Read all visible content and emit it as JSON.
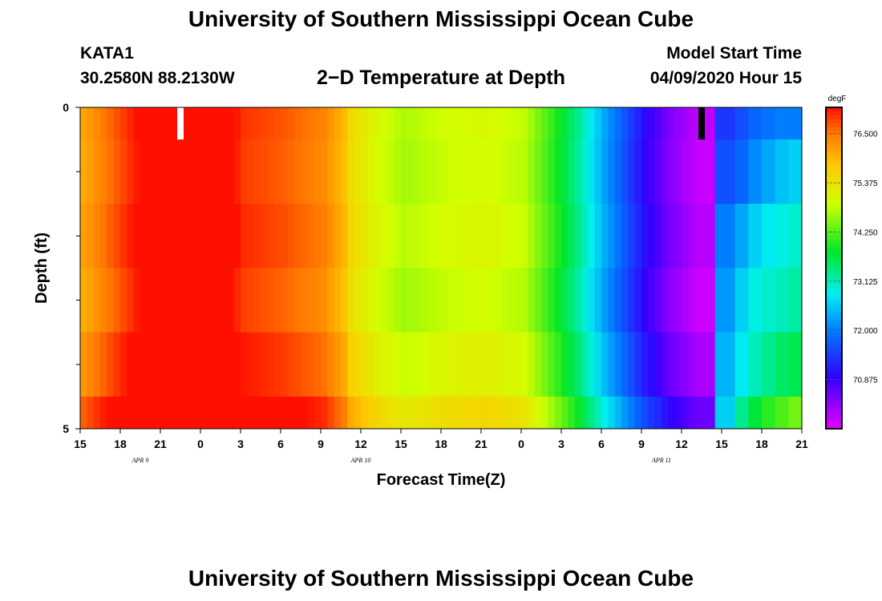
{
  "header": {
    "title_top": "University of Southern Mississippi Ocean Cube",
    "title_bottom": "University of Southern Mississippi Ocean Cube",
    "station": "KATA1",
    "coords": "30.2580N 88.2130W",
    "plot_title": "2−D Temperature at Depth",
    "start_label": "Model Start Time",
    "start_value": "04/09/2020 Hour 15"
  },
  "chart_data": {
    "type": "heatmap",
    "xlabel": "Forecast Time(Z)",
    "ylabel": "Depth (ft)",
    "colorbar_unit": "degF",
    "x_tick_labels": [
      "15",
      "18",
      "21",
      "0",
      "3",
      "6",
      "9",
      "12",
      "15",
      "18",
      "21",
      "0",
      "3",
      "6",
      "9",
      "12",
      "15",
      "18",
      "21"
    ],
    "date_labels": [
      {
        "text": "APR 9",
        "hour": 4.5
      },
      {
        "text": "APR 10",
        "hour": 21
      },
      {
        "text": "APR 11",
        "hour": 43.5
      }
    ],
    "y_tick_labels": [
      {
        "text": "0",
        "depth": 0
      },
      {
        "text": "5",
        "depth": 5
      }
    ],
    "y_minor_ticks": [
      1,
      2,
      3,
      4
    ],
    "xlim_hours": [
      0,
      54
    ],
    "ylim_ft": [
      0,
      5
    ],
    "depth_rows": [
      0,
      0.5,
      1.5,
      2.5,
      3.5,
      4.5
    ],
    "row_offsets": [
      0,
      -0.05,
      0.05,
      -0.08,
      0.15,
      0.55
    ],
    "tail_rows": [
      {
        "depth": 0,
        "values": [
          71.4,
          71.6,
          71.8,
          71.9,
          72.0,
          72.0
        ]
      },
      {
        "depth": 0.5,
        "values": [
          71.6,
          71.8,
          72.1,
          72.3,
          72.5,
          72.6
        ]
      },
      {
        "depth": 1.5,
        "values": [
          72.0,
          72.3,
          72.6,
          72.8,
          72.9,
          73.0
        ]
      },
      {
        "depth": 2.5,
        "values": [
          72.2,
          72.6,
          72.9,
          73.0,
          73.1,
          73.2
        ]
      },
      {
        "depth": 3.5,
        "values": [
          72.4,
          72.8,
          73.1,
          73.3,
          73.5,
          73.6
        ]
      },
      {
        "depth": 4.5,
        "values": [
          72.6,
          73.3,
          73.7,
          74.0,
          74.2,
          74.4
        ]
      }
    ],
    "time_series_surface": [
      {
        "hour": 0,
        "value": 76.1
      },
      {
        "hour": 2,
        "value": 76.6
      },
      {
        "hour": 4,
        "value": 77.1
      },
      {
        "hour": 6,
        "value": 77.5
      },
      {
        "hour": 7.5,
        "value": 77.7
      },
      {
        "hour": 10,
        "value": 77.5
      },
      {
        "hour": 12,
        "value": 76.9
      },
      {
        "hour": 15,
        "value": 76.7
      },
      {
        "hour": 18,
        "value": 76.4
      },
      {
        "hour": 19.5,
        "value": 75.9
      },
      {
        "hour": 20,
        "value": 75.5
      },
      {
        "hour": 22,
        "value": 75.0
      },
      {
        "hour": 24,
        "value": 74.7
      },
      {
        "hour": 27,
        "value": 74.9
      },
      {
        "hour": 30,
        "value": 75.0
      },
      {
        "hour": 33,
        "value": 74.8
      },
      {
        "hour": 35,
        "value": 74.1
      },
      {
        "hour": 37,
        "value": 73.3
      },
      {
        "hour": 39,
        "value": 72.3
      },
      {
        "hour": 42,
        "value": 71.0
      },
      {
        "hour": 44,
        "value": 70.4
      },
      {
        "hour": 46,
        "value": 70.0
      },
      {
        "hour": 47.5,
        "value": 70.0
      }
    ],
    "colorbar": {
      "min": 69.75,
      "max": 77.1,
      "tick_labels": [
        {
          "text": "76.500",
          "value": 76.5
        },
        {
          "text": "75.375",
          "value": 75.375
        },
        {
          "text": "74.250",
          "value": 74.25
        },
        {
          "text": "73.125",
          "value": 73.125
        },
        {
          "text": "72.000",
          "value": 72.0
        },
        {
          "text": "70.875",
          "value": 70.875
        }
      ]
    },
    "markers": [
      {
        "name": "surface-max-marker",
        "hour": 7.5,
        "depth_from": 0,
        "depth_to": 0.5,
        "color": "#ffffff"
      },
      {
        "name": "surface-min-marker",
        "hour": 46.5,
        "depth_from": 0,
        "depth_to": 0.5,
        "color": "#000000"
      }
    ]
  }
}
